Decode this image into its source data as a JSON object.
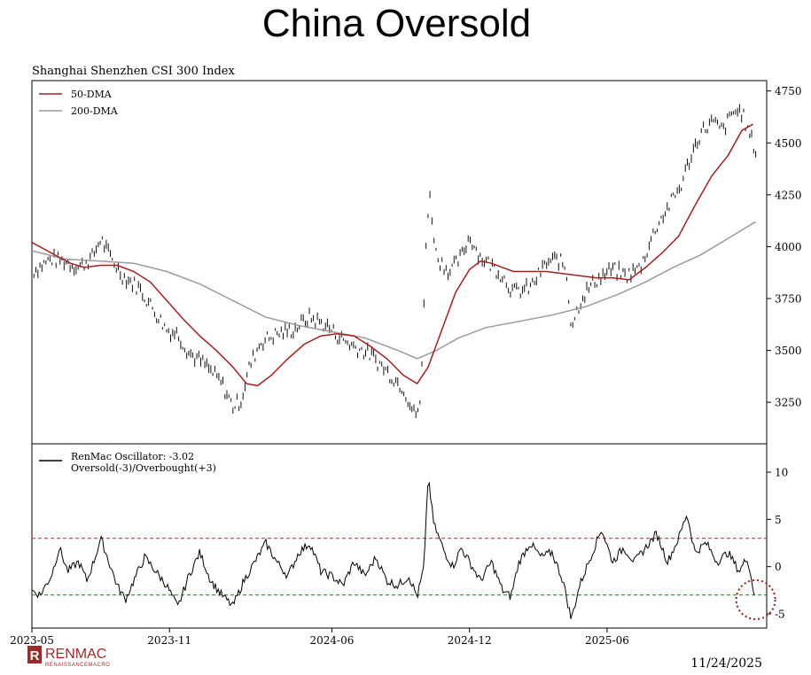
{
  "page": {
    "title": "China Oversold",
    "date": "11/24/2025",
    "brand": {
      "name": "RENMAC",
      "tagline": "RENAISSANCEMACRO",
      "mark": "R",
      "color": "#9b2b2b"
    }
  },
  "chart_data": [
    {
      "type": "line",
      "chart_type_note": "price bars (high-low) with moving averages",
      "title": "Shanghai Shenzhen CSI 300 Index",
      "ylim": [
        3050,
        4800
      ],
      "yticks": [
        3250,
        3500,
        3750,
        4000,
        4250,
        4500,
        4750
      ],
      "legend": [
        {
          "name": "50-DMA",
          "color": "#a02020"
        },
        {
          "name": "200-DMA",
          "color": "#9a9a9a"
        }
      ],
      "price_path": [
        [
          2023.33,
          3880
        ],
        [
          2023.4,
          3940
        ],
        [
          2023.45,
          3930
        ],
        [
          2023.5,
          3900
        ],
        [
          2023.55,
          3950
        ],
        [
          2023.58,
          4040
        ],
        [
          2023.61,
          3960
        ],
        [
          2023.66,
          3860
        ],
        [
          2023.72,
          3800
        ],
        [
          2023.78,
          3680
        ],
        [
          2023.82,
          3600
        ],
        [
          2023.86,
          3580
        ],
        [
          2023.9,
          3490
        ],
        [
          2023.96,
          3430
        ],
        [
          2024.02,
          3340
        ],
        [
          2024.06,
          3230
        ],
        [
          2024.09,
          3260
        ],
        [
          2024.12,
          3420
        ],
        [
          2024.16,
          3540
        ],
        [
          2024.22,
          3580
        ],
        [
          2024.28,
          3600
        ],
        [
          2024.34,
          3660
        ],
        [
          2024.4,
          3620
        ],
        [
          2024.45,
          3560
        ],
        [
          2024.5,
          3520
        ],
        [
          2024.56,
          3480
        ],
        [
          2024.62,
          3400
        ],
        [
          2024.68,
          3320
        ],
        [
          2024.72,
          3190
        ],
        [
          2024.74,
          3230
        ],
        [
          2024.75,
          3500
        ],
        [
          2024.76,
          4000
        ],
        [
          2024.775,
          4250
        ],
        [
          2024.8,
          3950
        ],
        [
          2024.85,
          3880
        ],
        [
          2024.89,
          3950
        ],
        [
          2024.92,
          4050
        ],
        [
          2024.96,
          3950
        ],
        [
          2025.0,
          3910
        ],
        [
          2025.04,
          3860
        ],
        [
          2025.08,
          3780
        ],
        [
          2025.14,
          3800
        ],
        [
          2025.2,
          3920
        ],
        [
          2025.24,
          3940
        ],
        [
          2025.27,
          3900
        ],
        [
          2025.29,
          3620
        ],
        [
          2025.33,
          3760
        ],
        [
          2025.38,
          3840
        ],
        [
          2025.44,
          3890
        ],
        [
          2025.49,
          3860
        ],
        [
          2025.54,
          3900
        ],
        [
          2025.6,
          4100
        ],
        [
          2025.66,
          4230
        ],
        [
          2025.69,
          4300
        ],
        [
          2025.72,
          4420
        ],
        [
          2025.76,
          4550
        ],
        [
          2025.8,
          4600
        ],
        [
          2025.84,
          4560
        ],
        [
          2025.88,
          4650
        ],
        [
          2025.91,
          4650
        ],
        [
          2025.93,
          4560
        ],
        [
          2025.95,
          4500
        ],
        [
          2025.96,
          4460
        ]
      ],
      "dma50": [
        [
          2023.33,
          4020
        ],
        [
          2023.4,
          3970
        ],
        [
          2023.47,
          3920
        ],
        [
          2023.52,
          3900
        ],
        [
          2023.58,
          3910
        ],
        [
          2023.64,
          3910
        ],
        [
          2023.7,
          3880
        ],
        [
          2023.76,
          3830
        ],
        [
          2023.82,
          3740
        ],
        [
          2023.88,
          3650
        ],
        [
          2023.94,
          3570
        ],
        [
          2024.0,
          3500
        ],
        [
          2024.06,
          3420
        ],
        [
          2024.11,
          3340
        ],
        [
          2024.15,
          3330
        ],
        [
          2024.2,
          3380
        ],
        [
          2024.26,
          3460
        ],
        [
          2024.32,
          3530
        ],
        [
          2024.38,
          3570
        ],
        [
          2024.44,
          3580
        ],
        [
          2024.5,
          3570
        ],
        [
          2024.56,
          3520
        ],
        [
          2024.62,
          3460
        ],
        [
          2024.68,
          3380
        ],
        [
          2024.73,
          3340
        ],
        [
          2024.77,
          3420
        ],
        [
          2024.82,
          3600
        ],
        [
          2024.87,
          3780
        ],
        [
          2024.92,
          3890
        ],
        [
          2024.96,
          3930
        ],
        [
          2025.0,
          3920
        ],
        [
          2025.04,
          3900
        ],
        [
          2025.08,
          3880
        ],
        [
          2025.14,
          3880
        ],
        [
          2025.2,
          3880
        ],
        [
          2025.26,
          3870
        ],
        [
          2025.32,
          3860
        ],
        [
          2025.38,
          3850
        ],
        [
          2025.44,
          3850
        ],
        [
          2025.5,
          3840
        ],
        [
          2025.56,
          3900
        ],
        [
          2025.62,
          3970
        ],
        [
          2025.68,
          4050
        ],
        [
          2025.74,
          4200
        ],
        [
          2025.8,
          4340
        ],
        [
          2025.86,
          4440
        ],
        [
          2025.91,
          4560
        ],
        [
          2025.95,
          4590
        ]
      ],
      "dma200": [
        [
          2023.33,
          3980
        ],
        [
          2023.45,
          3940
        ],
        [
          2023.58,
          3930
        ],
        [
          2023.7,
          3920
        ],
        [
          2023.82,
          3880
        ],
        [
          2023.94,
          3820
        ],
        [
          2024.06,
          3740
        ],
        [
          2024.18,
          3660
        ],
        [
          2024.3,
          3620
        ],
        [
          2024.42,
          3590
        ],
        [
          2024.54,
          3560
        ],
        [
          2024.66,
          3500
        ],
        [
          2024.73,
          3460
        ],
        [
          2024.8,
          3500
        ],
        [
          2024.88,
          3560
        ],
        [
          2024.98,
          3610
        ],
        [
          2025.1,
          3640
        ],
        [
          2025.22,
          3670
        ],
        [
          2025.34,
          3710
        ],
        [
          2025.46,
          3770
        ],
        [
          2025.56,
          3830
        ],
        [
          2025.66,
          3900
        ],
        [
          2025.76,
          3960
        ],
        [
          2025.86,
          4040
        ],
        [
          2025.96,
          4120
        ]
      ]
    },
    {
      "type": "line",
      "title": "",
      "ylim": [
        -6.5,
        13
      ],
      "yticks": [
        -5,
        0,
        5,
        10
      ],
      "xlim": [
        2023.33,
        2026.0
      ],
      "xticks": [
        {
          "label": "2023-05",
          "x": 2023.33
        },
        {
          "label": "2023-11",
          "x": 2023.83
        },
        {
          "label": "2024-06",
          "x": 2024.42
        },
        {
          "label": "2024-12",
          "x": 2024.92
        },
        {
          "label": "2025-06",
          "x": 2025.42
        }
      ],
      "legend": [
        {
          "name": "RenMac Oscillator: -3.02",
          "color": "#000000"
        },
        {
          "name": "Oversold(-3)/Overbought(+3)",
          "color": "#000000"
        }
      ],
      "thresholds": [
        {
          "value": 3,
          "color": "#e83030",
          "label": "Overbought(+3)"
        },
        {
          "value": -3,
          "color": "#1a9a1a",
          "label": "Oversold(-3)"
        }
      ],
      "last_value": -3.02,
      "oscillator": [
        [
          2023.33,
          -2.5
        ],
        [
          2023.36,
          -3.0
        ],
        [
          2023.4,
          -1.0
        ],
        [
          2023.43,
          2.0
        ],
        [
          2023.46,
          -0.5
        ],
        [
          2023.5,
          0.5
        ],
        [
          2023.53,
          -1.5
        ],
        [
          2023.56,
          1.0
        ],
        [
          2023.58,
          3.0
        ],
        [
          2023.61,
          0.5
        ],
        [
          2023.64,
          -2.0
        ],
        [
          2023.67,
          -3.5
        ],
        [
          2023.7,
          -1.5
        ],
        [
          2023.74,
          1.0
        ],
        [
          2023.78,
          -0.5
        ],
        [
          2023.82,
          -2.0
        ],
        [
          2023.86,
          -4.3
        ],
        [
          2023.9,
          -1.0
        ],
        [
          2023.94,
          1.5
        ],
        [
          2023.98,
          -1.5
        ],
        [
          2024.02,
          -3.0
        ],
        [
          2024.06,
          -4.2
        ],
        [
          2024.1,
          -1.5
        ],
        [
          2024.14,
          0.5
        ],
        [
          2024.18,
          2.5
        ],
        [
          2024.22,
          0.5
        ],
        [
          2024.26,
          -1.0
        ],
        [
          2024.3,
          1.5
        ],
        [
          2024.34,
          2.5
        ],
        [
          2024.38,
          -0.5
        ],
        [
          2024.42,
          -1.0
        ],
        [
          2024.46,
          -2.0
        ],
        [
          2024.5,
          0.5
        ],
        [
          2024.54,
          -1.0
        ],
        [
          2024.58,
          1.0
        ],
        [
          2024.62,
          -1.5
        ],
        [
          2024.66,
          -2.0
        ],
        [
          2024.7,
          -1.0
        ],
        [
          2024.73,
          -3.2
        ],
        [
          2024.755,
          0.0
        ],
        [
          2024.77,
          9.7
        ],
        [
          2024.79,
          4.5
        ],
        [
          2024.83,
          1.5
        ],
        [
          2024.86,
          0.0
        ],
        [
          2024.89,
          2.0
        ],
        [
          2024.93,
          0.0
        ],
        [
          2024.96,
          -1.5
        ],
        [
          2025.0,
          0.5
        ],
        [
          2025.04,
          -2.5
        ],
        [
          2025.07,
          -3.2
        ],
        [
          2025.1,
          0.5
        ],
        [
          2025.14,
          2.5
        ],
        [
          2025.18,
          1.0
        ],
        [
          2025.22,
          1.5
        ],
        [
          2025.26,
          -1.5
        ],
        [
          2025.29,
          -5.6
        ],
        [
          2025.32,
          -2.0
        ],
        [
          2025.36,
          1.0
        ],
        [
          2025.4,
          4.0
        ],
        [
          2025.44,
          0.5
        ],
        [
          2025.48,
          2.0
        ],
        [
          2025.52,
          0.5
        ],
        [
          2025.56,
          2.0
        ],
        [
          2025.6,
          3.5
        ],
        [
          2025.64,
          0.5
        ],
        [
          2025.68,
          3.0
        ],
        [
          2025.71,
          5.6
        ],
        [
          2025.74,
          1.5
        ],
        [
          2025.78,
          2.5
        ],
        [
          2025.82,
          0.5
        ],
        [
          2025.86,
          1.5
        ],
        [
          2025.9,
          -0.5
        ],
        [
          2025.93,
          1.0
        ],
        [
          2025.955,
          -3.02
        ]
      ],
      "annotation": {
        "type": "circle",
        "x": 2025.96,
        "y": -3.5,
        "color": "#9b1b1b"
      }
    }
  ]
}
